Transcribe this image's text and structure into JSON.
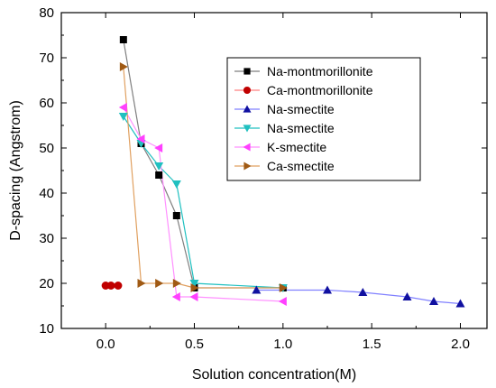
{
  "chart_data": {
    "type": "scatter",
    "title": "",
    "xlabel": "Solution concentration(M)",
    "ylabel": "D-spacing (Angstrom)",
    "xlim": [
      -0.25,
      2.15
    ],
    "ylim": [
      10,
      80
    ],
    "xticks": [
      0.0,
      0.5,
      1.0,
      1.5,
      2.0
    ],
    "xtick_labels": [
      "0.0",
      "0.5",
      "1.0",
      "1.5",
      "2.0"
    ],
    "yticks": [
      10,
      20,
      30,
      40,
      50,
      60,
      70,
      80
    ],
    "ytick_labels": [
      "10",
      "20",
      "30",
      "40",
      "50",
      "60",
      "70",
      "80"
    ],
    "grid": false,
    "legend_position": "top-right",
    "series": [
      {
        "name": "Na-montmorillonite",
        "marker": "square",
        "color": "#000000",
        "line_color": "#7f7f7f",
        "x": [
          0.1,
          0.2,
          0.3,
          0.4,
          0.5,
          1.0
        ],
        "y": [
          74,
          51,
          44,
          35,
          19,
          19
        ]
      },
      {
        "name": "Ca-montmorillonite",
        "marker": "circle",
        "color": "#c00000",
        "line_color": "#ff8080",
        "x": [
          0.0,
          0.03,
          0.07
        ],
        "y": [
          19.5,
          19.5,
          19.5
        ]
      },
      {
        "name": "Na-smectite",
        "marker": "triangle-up",
        "color": "#1010a0",
        "line_color": "#8080ff",
        "x": [
          0.85,
          1.25,
          1.45,
          1.7,
          1.85,
          2.0
        ],
        "y": [
          18.5,
          18.5,
          18,
          17,
          16,
          15.5
        ]
      },
      {
        "name": "Na-smectite",
        "marker": "triangle-down",
        "color": "#20c0c0",
        "line_color": "#20c0c0",
        "x": [
          0.1,
          0.2,
          0.3,
          0.4,
          0.5,
          1.0
        ],
        "y": [
          57,
          51,
          46,
          42,
          20,
          19
        ]
      },
      {
        "name": "K-smectite",
        "marker": "triangle-left",
        "color": "#ff40ff",
        "line_color": "#ff90ff",
        "x": [
          0.1,
          0.2,
          0.3,
          0.4,
          0.5,
          1.0
        ],
        "y": [
          59,
          52,
          50,
          17,
          17,
          16
        ]
      },
      {
        "name": "Ca-smectite",
        "marker": "triangle-right",
        "color": "#a05a14",
        "line_color": "#e0a060",
        "x": [
          0.1,
          0.2,
          0.3,
          0.4,
          0.5,
          1.0
        ],
        "y": [
          68,
          20,
          20,
          20,
          19,
          19
        ]
      }
    ]
  }
}
